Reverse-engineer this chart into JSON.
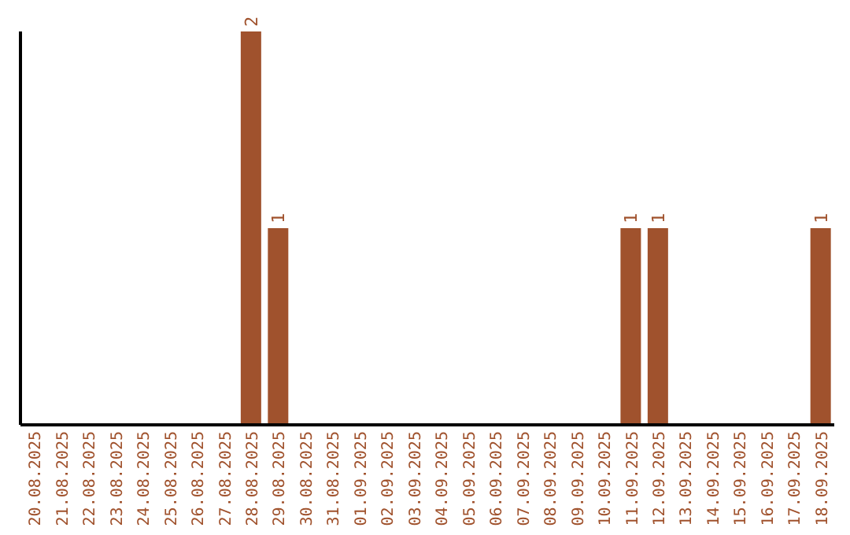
{
  "chart_data": {
    "type": "bar",
    "categories": [
      "20.08.2025",
      "21.08.2025",
      "22.08.2025",
      "23.08.2025",
      "24.08.2025",
      "25.08.2025",
      "26.08.2025",
      "27.08.2025",
      "28.08.2025",
      "29.08.2025",
      "30.08.2025",
      "31.08.2025",
      "01.09.2025",
      "02.09.2025",
      "03.09.2025",
      "04.09.2025",
      "05.09.2025",
      "06.09.2025",
      "07.09.2025",
      "08.09.2025",
      "09.09.2025",
      "10.09.2025",
      "11.09.2025",
      "12.09.2025",
      "13.09.2025",
      "14.09.2025",
      "15.09.2025",
      "16.09.2025",
      "17.09.2025",
      "18.09.2025"
    ],
    "values": [
      0,
      0,
      0,
      0,
      0,
      0,
      0,
      0,
      2,
      1,
      0,
      0,
      0,
      0,
      0,
      0,
      0,
      0,
      0,
      0,
      0,
      0,
      1,
      1,
      0,
      0,
      0,
      0,
      0,
      1
    ],
    "value_labels": [
      null,
      null,
      null,
      null,
      null,
      null,
      null,
      null,
      "2",
      "1",
      null,
      null,
      null,
      null,
      null,
      null,
      null,
      null,
      null,
      null,
      null,
      null,
      "1",
      "1",
      null,
      null,
      null,
      null,
      null,
      "1"
    ],
    "color": "#a0522d",
    "grid": false,
    "legend": false
  }
}
